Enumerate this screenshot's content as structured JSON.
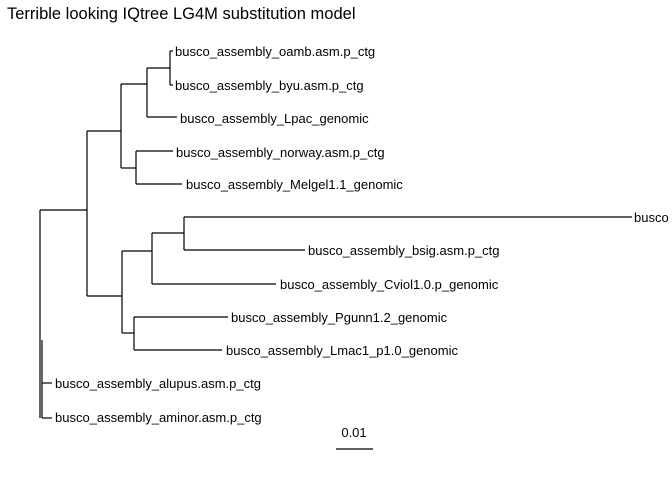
{
  "title": "Terrible looking IQtree LG4M substitution model",
  "tips": [
    {
      "id": "oamb",
      "label": "busco_assembly_oamb.asm.p_ctg"
    },
    {
      "id": "byu",
      "label": "busco_assembly_byu.asm.p_ctg"
    },
    {
      "id": "lpac",
      "label": "busco_assembly_Lpac_genomic"
    },
    {
      "id": "norway",
      "label": "busco_assembly_norway.asm.p_ctg"
    },
    {
      "id": "melgel",
      "label": "busco_assembly_Melgel1.1_genomic"
    },
    {
      "id": "trunc",
      "label": "busco"
    },
    {
      "id": "bsig",
      "label": "busco_assembly_bsig.asm.p_ctg"
    },
    {
      "id": "cviol",
      "label": "busco_assembly_Cviol1.0.p_genomic"
    },
    {
      "id": "pgunn",
      "label": "busco_assembly_Pgunn1.2_genomic"
    },
    {
      "id": "lmac",
      "label": "busco_assembly_Lmac1_p1.0_genomic"
    },
    {
      "id": "alupus",
      "label": "busco_assembly_alupus.asm.p_ctg"
    },
    {
      "id": "aminor",
      "label": "busco_assembly_aminor.asm.p_ctg"
    }
  ],
  "scale_bar": {
    "label": "0.01",
    "value": 0.01
  }
}
